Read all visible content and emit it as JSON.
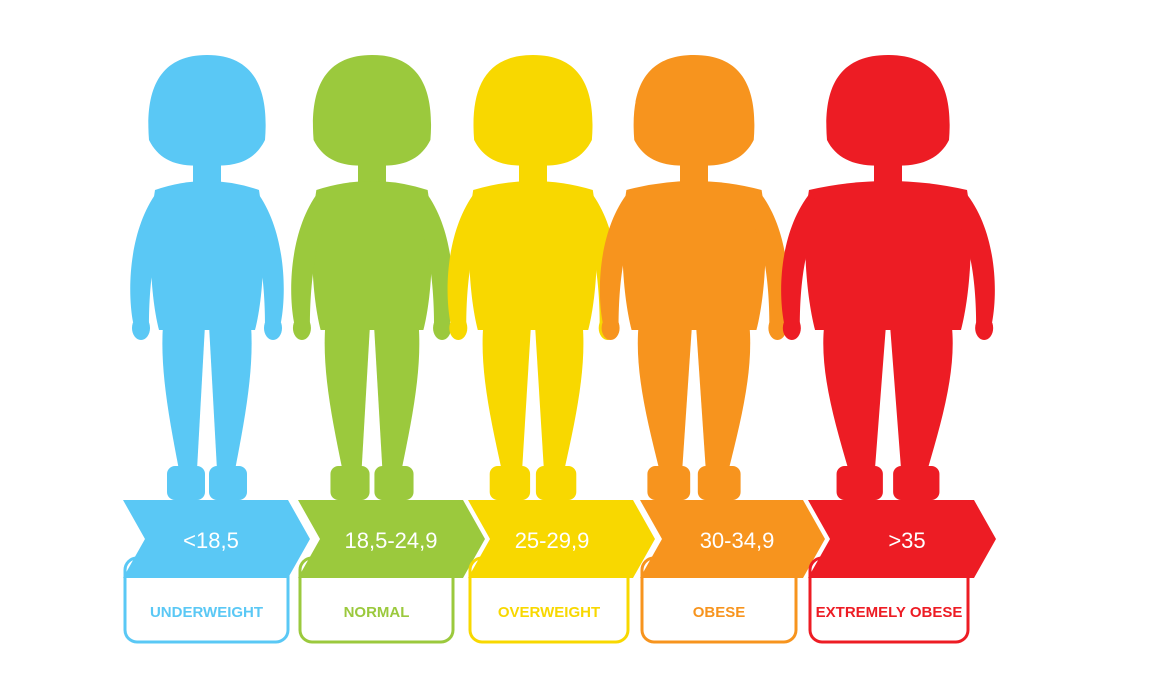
{
  "categories": [
    {
      "range": "<18,5",
      "label": "UNDERWEIGHT",
      "color": "#5AC8F5"
    },
    {
      "range": "18,5-24,9",
      "label": "NORMAL",
      "color": "#9BC93D"
    },
    {
      "range": "25-29,9",
      "label": "OVERWEIGHT",
      "color": "#F8D800"
    },
    {
      "range": "30-34,9",
      "label": "OBESE",
      "color": "#F7941E"
    },
    {
      "range": ">35",
      "label": "EXTREMELY OBESE",
      "color": "#ED1C24"
    }
  ]
}
